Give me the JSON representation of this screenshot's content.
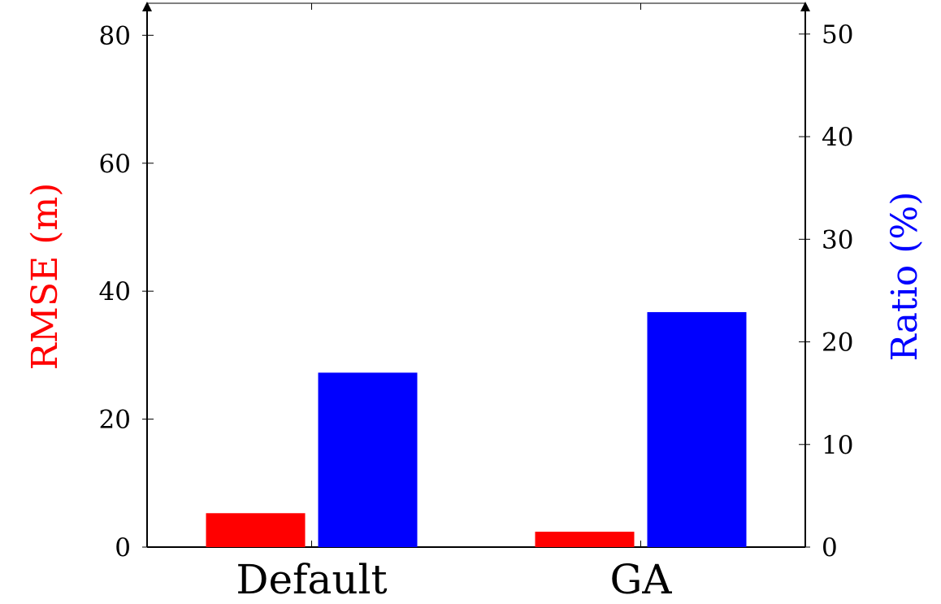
{
  "chart_data": {
    "type": "bar",
    "categories": [
      "Default",
      "GA"
    ],
    "series": [
      {
        "name": "RMSE (m)",
        "axis": "left",
        "color": "#ff0000",
        "values": [
          5.3,
          2.4
        ]
      },
      {
        "name": "Ratio (%)",
        "axis": "right",
        "color": "#0000ff",
        "values": [
          17.0,
          22.9
        ]
      }
    ],
    "ylabel_left": "RMSE (m)",
    "ylabel_right": "Ratio (%)",
    "ylim_left": [
      0,
      85
    ],
    "ylim_right": [
      0,
      53
    ],
    "yticks_left": [
      "0",
      "20",
      "40",
      "60",
      "80"
    ],
    "yticks_right": [
      "0",
      "10",
      "20",
      "30",
      "40",
      "50"
    ],
    "grid": false,
    "legend": "none"
  }
}
